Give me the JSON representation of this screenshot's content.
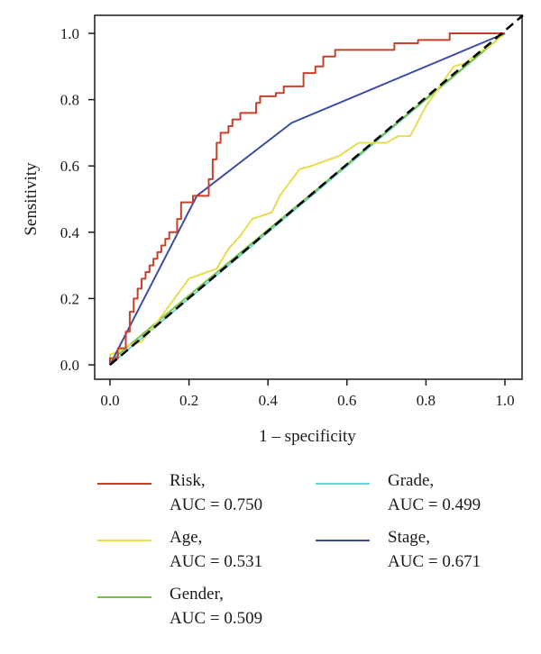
{
  "chart_data": {
    "type": "line",
    "title": "",
    "xlabel": "1 – specificity",
    "ylabel": "Sensitivity",
    "xlim": [
      0,
      1
    ],
    "ylim": [
      0,
      1
    ],
    "x_ticks": [
      "0.0",
      "0.2",
      "0.4",
      "0.6",
      "0.8",
      "1.0"
    ],
    "y_ticks": [
      "0.0",
      "0.2",
      "0.4",
      "0.6",
      "0.8",
      "1.0"
    ],
    "grid": false,
    "legend_position": "bottom",
    "reference_line": {
      "style": "dashed",
      "color": "#000000",
      "points": [
        [
          0,
          0
        ],
        [
          1,
          1
        ]
      ]
    },
    "series": [
      {
        "name": "Risk,",
        "auc_label": "AUC = 0.750",
        "color": "#c8402a",
        "points": [
          [
            0,
            0
          ],
          [
            0,
            0.02
          ],
          [
            0.02,
            0.02
          ],
          [
            0.02,
            0.05
          ],
          [
            0.04,
            0.05
          ],
          [
            0.04,
            0.1
          ],
          [
            0.05,
            0.1
          ],
          [
            0.05,
            0.16
          ],
          [
            0.06,
            0.16
          ],
          [
            0.06,
            0.2
          ],
          [
            0.07,
            0.2
          ],
          [
            0.07,
            0.23
          ],
          [
            0.08,
            0.23
          ],
          [
            0.08,
            0.26
          ],
          [
            0.09,
            0.26
          ],
          [
            0.09,
            0.28
          ],
          [
            0.1,
            0.28
          ],
          [
            0.1,
            0.3
          ],
          [
            0.11,
            0.3
          ],
          [
            0.11,
            0.32
          ],
          [
            0.12,
            0.32
          ],
          [
            0.12,
            0.34
          ],
          [
            0.13,
            0.34
          ],
          [
            0.13,
            0.36
          ],
          [
            0.14,
            0.36
          ],
          [
            0.14,
            0.38
          ],
          [
            0.15,
            0.38
          ],
          [
            0.15,
            0.4
          ],
          [
            0.17,
            0.4
          ],
          [
            0.17,
            0.44
          ],
          [
            0.18,
            0.44
          ],
          [
            0.18,
            0.49
          ],
          [
            0.21,
            0.49
          ],
          [
            0.21,
            0.51
          ],
          [
            0.25,
            0.51
          ],
          [
            0.25,
            0.56
          ],
          [
            0.26,
            0.56
          ],
          [
            0.26,
            0.62
          ],
          [
            0.27,
            0.62
          ],
          [
            0.27,
            0.67
          ],
          [
            0.28,
            0.67
          ],
          [
            0.28,
            0.7
          ],
          [
            0.3,
            0.7
          ],
          [
            0.3,
            0.72
          ],
          [
            0.31,
            0.72
          ],
          [
            0.31,
            0.74
          ],
          [
            0.33,
            0.74
          ],
          [
            0.33,
            0.76
          ],
          [
            0.37,
            0.76
          ],
          [
            0.37,
            0.79
          ],
          [
            0.38,
            0.79
          ],
          [
            0.38,
            0.81
          ],
          [
            0.42,
            0.81
          ],
          [
            0.42,
            0.82
          ],
          [
            0.44,
            0.82
          ],
          [
            0.44,
            0.84
          ],
          [
            0.49,
            0.84
          ],
          [
            0.49,
            0.88
          ],
          [
            0.52,
            0.88
          ],
          [
            0.52,
            0.9
          ],
          [
            0.54,
            0.9
          ],
          [
            0.54,
            0.93
          ],
          [
            0.57,
            0.93
          ],
          [
            0.57,
            0.95
          ],
          [
            0.72,
            0.95
          ],
          [
            0.72,
            0.97
          ],
          [
            0.78,
            0.97
          ],
          [
            0.78,
            0.98
          ],
          [
            0.86,
            0.98
          ],
          [
            0.86,
            1.0
          ],
          [
            1.0,
            1.0
          ]
        ]
      },
      {
        "name": "Age,",
        "auc_label": "AUC = 0.531",
        "color": "#e5dd4b",
        "points": [
          [
            0,
            0
          ],
          [
            0,
            0.03
          ],
          [
            0.02,
            0.04
          ],
          [
            0.05,
            0.06
          ],
          [
            0.08,
            0.07
          ],
          [
            0.12,
            0.13
          ],
          [
            0.2,
            0.26
          ],
          [
            0.27,
            0.29
          ],
          [
            0.3,
            0.35
          ],
          [
            0.33,
            0.39
          ],
          [
            0.36,
            0.44
          ],
          [
            0.41,
            0.46
          ],
          [
            0.43,
            0.51
          ],
          [
            0.48,
            0.59
          ],
          [
            0.51,
            0.6
          ],
          [
            0.58,
            0.63
          ],
          [
            0.63,
            0.67
          ],
          [
            0.7,
            0.67
          ],
          [
            0.73,
            0.69
          ],
          [
            0.76,
            0.69
          ],
          [
            0.8,
            0.78
          ],
          [
            0.87,
            0.9
          ],
          [
            0.9,
            0.91
          ],
          [
            0.93,
            0.94
          ],
          [
            0.96,
            0.96
          ],
          [
            1.0,
            1.0
          ]
        ]
      },
      {
        "name": "Gender,",
        "auc_label": "AUC = 0.509",
        "color": "#7cc142",
        "points": [
          [
            0,
            0
          ],
          [
            0.02,
            0.03
          ],
          [
            0.05,
            0.06
          ],
          [
            0.15,
            0.16
          ],
          [
            1.0,
            1.0
          ]
        ]
      },
      {
        "name": "Grade,",
        "auc_label": "AUC = 0.499",
        "color": "#6cd0d8",
        "points": [
          [
            0,
            0
          ],
          [
            0.03,
            0.03
          ],
          [
            0.97,
            0.97
          ],
          [
            1.0,
            1.0
          ]
        ]
      },
      {
        "name": "Stage,",
        "auc_label": "AUC = 0.671",
        "color": "#3c4ba6",
        "points": [
          [
            0,
            0
          ],
          [
            0.22,
            0.51
          ],
          [
            0.46,
            0.73
          ],
          [
            1.0,
            1.0
          ]
        ]
      }
    ]
  }
}
